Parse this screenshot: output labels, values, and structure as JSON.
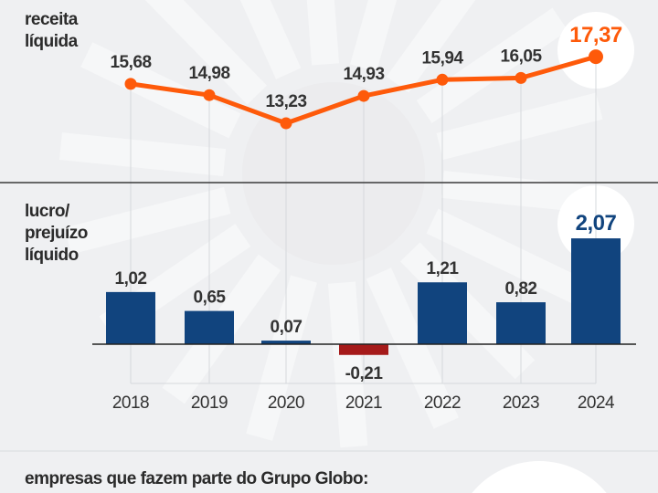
{
  "colors": {
    "line": "#fe5a0a",
    "bar_positive": "#11447e",
    "bar_negative": "#a51a1a",
    "text": "#333333"
  },
  "chart_data": [
    {
      "type": "line",
      "title": "receita líquida",
      "categories": [
        "2018",
        "2019",
        "2020",
        "2021",
        "2022",
        "2023",
        "2024"
      ],
      "values": [
        15.68,
        14.98,
        13.23,
        14.93,
        15.94,
        16.05,
        17.37
      ],
      "labels": [
        "15,68",
        "14,98",
        "13,23",
        "14,93",
        "15,94",
        "16,05",
        "17,37"
      ],
      "highlight_index": 6
    },
    {
      "type": "bar",
      "title_lines": [
        "lucro/",
        "prejuízo",
        "líquido"
      ],
      "categories": [
        "2018",
        "2019",
        "2020",
        "2021",
        "2022",
        "2023",
        "2024"
      ],
      "values": [
        1.02,
        0.65,
        0.07,
        -0.21,
        1.21,
        0.82,
        2.07
      ],
      "labels": [
        "1,02",
        "0,65",
        "0,07",
        "-0,21",
        "1,21",
        "0,82",
        "2,07"
      ],
      "highlight_index": 6
    }
  ],
  "labels": {
    "revenue_line1": "receita",
    "revenue_line2": "líquida"
  },
  "footer": "empresas que fazem parte do Grupo Globo:"
}
